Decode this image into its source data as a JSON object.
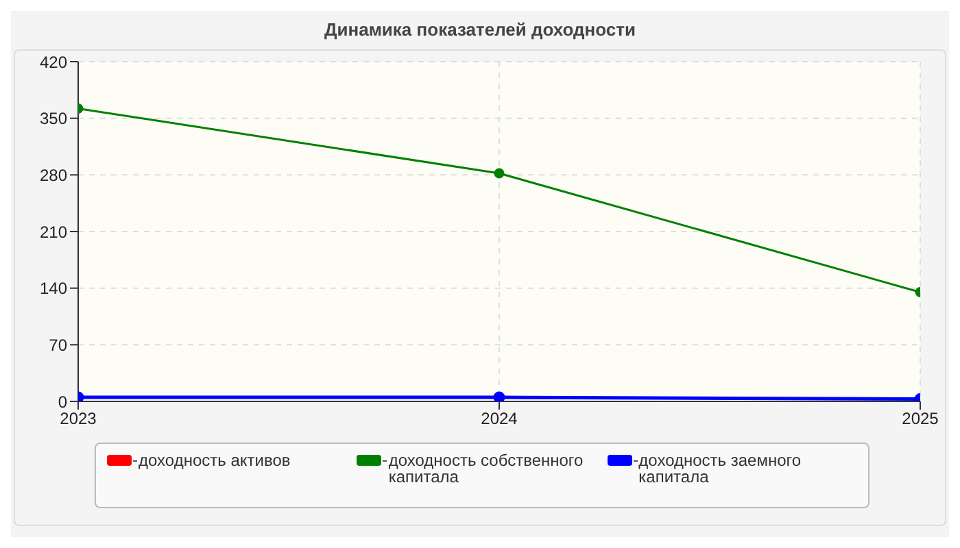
{
  "chart_data": {
    "type": "line",
    "title": "Динамика показателей доходности",
    "x": [
      2023,
      2024,
      2025
    ],
    "xlim": [
      2023,
      2025
    ],
    "xticks": [
      2023,
      2024,
      2025
    ],
    "ylim": [
      0,
      420
    ],
    "yticks": [
      0,
      70,
      140,
      210,
      280,
      350,
      420
    ],
    "series": [
      {
        "name": "доходность активов",
        "color": "#ff0000",
        "values": [
          null,
          null,
          null
        ]
      },
      {
        "name": "доходность собственного капитала",
        "color": "#008000",
        "values": [
          362,
          282,
          135
        ]
      },
      {
        "name": "доходность заемного капитала",
        "color": "#0000ff",
        "values": [
          5,
          5,
          3
        ]
      }
    ],
    "grid": true,
    "legend": "bottom",
    "marker": "circle",
    "line_style": "solid"
  }
}
